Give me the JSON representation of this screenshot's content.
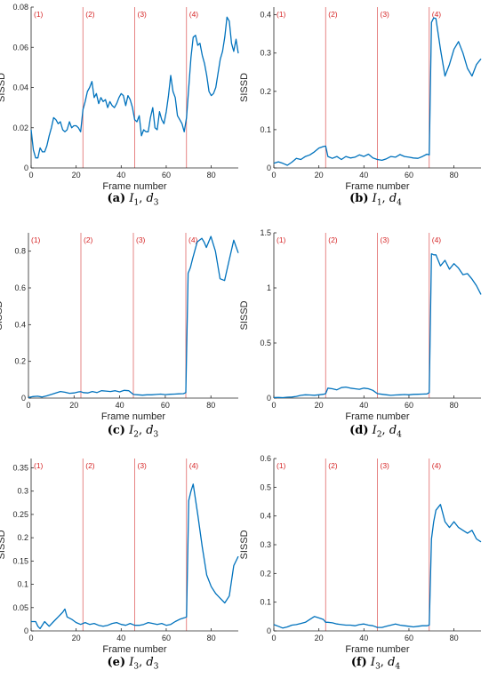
{
  "colors": {
    "line": "#0072BD",
    "phase": "#e06666",
    "phase_text": "#d62728",
    "axis": "#262626"
  },
  "chart_data": [
    {
      "type": "line",
      "caption_tag": "(a)",
      "caption_I": "I",
      "caption_I_sub": "1",
      "caption_d": "d",
      "caption_d_sub": "3",
      "xlabel": "Frame number",
      "ylabel": "SISSD",
      "xlim": [
        0,
        92
      ],
      "ylim": [
        0,
        0.08
      ],
      "xticks": [
        0,
        20,
        40,
        60,
        80
      ],
      "yticks": [
        0,
        0.02,
        0.04,
        0.06,
        0.08
      ],
      "ytick_labels": [
        "0",
        "0.02",
        "0.04",
        "0.06",
        "0.08"
      ],
      "phases": [
        {
          "x": 0,
          "label": "(1)"
        },
        {
          "x": 23,
          "label": "(2)"
        },
        {
          "x": 46,
          "label": "(3)"
        },
        {
          "x": 69,
          "label": "(4)"
        }
      ],
      "x": [
        0,
        1,
        2,
        3,
        4,
        5,
        6,
        7,
        8,
        9,
        10,
        11,
        12,
        13,
        14,
        15,
        16,
        17,
        18,
        19,
        20,
        21,
        22,
        23,
        24,
        25,
        26,
        27,
        28,
        29,
        30,
        31,
        32,
        33,
        34,
        35,
        36,
        37,
        38,
        39,
        40,
        41,
        42,
        43,
        44,
        45,
        46,
        47,
        48,
        49,
        50,
        51,
        52,
        53,
        54,
        55,
        56,
        57,
        58,
        59,
        60,
        61,
        62,
        63,
        64,
        65,
        66,
        67,
        68,
        69,
        70,
        71,
        72,
        73,
        74,
        75,
        76,
        77,
        78,
        79,
        80,
        81,
        82,
        83,
        84,
        85,
        86,
        87,
        88,
        89,
        90,
        91,
        92
      ],
      "y": [
        0.019,
        0.009,
        0.005,
        0.005,
        0.01,
        0.008,
        0.008,
        0.011,
        0.016,
        0.02,
        0.025,
        0.024,
        0.022,
        0.023,
        0.019,
        0.018,
        0.019,
        0.023,
        0.02,
        0.021,
        0.021,
        0.02,
        0.018,
        0.029,
        0.033,
        0.038,
        0.04,
        0.043,
        0.035,
        0.037,
        0.032,
        0.035,
        0.033,
        0.034,
        0.03,
        0.033,
        0.031,
        0.03,
        0.032,
        0.035,
        0.037,
        0.036,
        0.031,
        0.036,
        0.034,
        0.03,
        0.024,
        0.023,
        0.026,
        0.016,
        0.019,
        0.018,
        0.018,
        0.025,
        0.03,
        0.02,
        0.019,
        0.028,
        0.024,
        0.022,
        0.028,
        0.036,
        0.046,
        0.038,
        0.035,
        0.026,
        0.024,
        0.022,
        0.018,
        0.025,
        0.04,
        0.055,
        0.065,
        0.066,
        0.061,
        0.062,
        0.056,
        0.052,
        0.046,
        0.038,
        0.036,
        0.037,
        0.04,
        0.047,
        0.054,
        0.058,
        0.065,
        0.075,
        0.073,
        0.062,
        0.058,
        0.064,
        0.057
      ]
    },
    {
      "type": "line",
      "caption_tag": "(b)",
      "caption_I": "I",
      "caption_I_sub": "1",
      "caption_d": "d",
      "caption_d_sub": "4",
      "xlabel": "Frame number",
      "ylabel": "SISSD",
      "xlim": [
        0,
        92
      ],
      "ylim": [
        0,
        0.42
      ],
      "xticks": [
        0,
        20,
        40,
        60,
        80
      ],
      "yticks": [
        0,
        0.1,
        0.2,
        0.3,
        0.4
      ],
      "ytick_labels": [
        "0",
        "0.1",
        "0.2",
        "0.3",
        "0.4"
      ],
      "phases": [
        {
          "x": 0,
          "label": "(1)"
        },
        {
          "x": 23,
          "label": "(2)"
        },
        {
          "x": 46,
          "label": "(3)"
        },
        {
          "x": 69,
          "label": "(4)"
        }
      ],
      "x": [
        0,
        2,
        4,
        6,
        8,
        10,
        12,
        14,
        16,
        18,
        20,
        22,
        23,
        24,
        26,
        28,
        30,
        32,
        34,
        36,
        38,
        40,
        42,
        44,
        46,
        48,
        50,
        52,
        54,
        56,
        58,
        60,
        62,
        64,
        66,
        68,
        69,
        70,
        71,
        72,
        74,
        76,
        78,
        80,
        82,
        84,
        86,
        88,
        90,
        92
      ],
      "y": [
        0.012,
        0.016,
        0.012,
        0.007,
        0.015,
        0.025,
        0.022,
        0.03,
        0.034,
        0.042,
        0.052,
        0.056,
        0.057,
        0.03,
        0.025,
        0.03,
        0.022,
        0.03,
        0.026,
        0.028,
        0.034,
        0.03,
        0.036,
        0.026,
        0.022,
        0.02,
        0.024,
        0.03,
        0.028,
        0.035,
        0.03,
        0.028,
        0.026,
        0.025,
        0.03,
        0.036,
        0.034,
        0.38,
        0.392,
        0.39,
        0.31,
        0.24,
        0.27,
        0.31,
        0.33,
        0.3,
        0.26,
        0.24,
        0.27,
        0.285
      ]
    },
    {
      "type": "line",
      "caption_tag": "(c)",
      "caption_I": "I",
      "caption_I_sub": "2",
      "caption_d": "d",
      "caption_d_sub": "3",
      "xlabel": "Frame number",
      "ylabel": "SISSD",
      "xlim": [
        0,
        92
      ],
      "ylim": [
        0,
        0.9
      ],
      "xticks": [
        0,
        20,
        40,
        60,
        80
      ],
      "yticks": [
        0,
        0.2,
        0.4,
        0.6,
        0.8
      ],
      "ytick_labels": [
        "0",
        "0.2",
        "0.4",
        "0.6",
        "0.8"
      ],
      "phases": [
        {
          "x": 0,
          "label": "(1)"
        },
        {
          "x": 23,
          "label": "(2)"
        },
        {
          "x": 46,
          "label": "(3)"
        },
        {
          "x": 69,
          "label": "(4)"
        }
      ],
      "x": [
        0,
        2,
        4,
        6,
        8,
        10,
        12,
        14,
        16,
        18,
        20,
        22,
        23,
        24,
        26,
        28,
        30,
        32,
        34,
        36,
        38,
        40,
        42,
        44,
        46,
        48,
        50,
        52,
        54,
        56,
        58,
        60,
        62,
        64,
        66,
        68,
        69,
        70,
        71,
        72,
        74,
        76,
        77,
        78,
        80,
        82,
        84,
        86,
        88,
        90,
        92
      ],
      "y": [
        0.003,
        0.008,
        0.01,
        0.006,
        0.012,
        0.02,
        0.028,
        0.036,
        0.032,
        0.026,
        0.028,
        0.034,
        0.035,
        0.03,
        0.028,
        0.036,
        0.03,
        0.04,
        0.038,
        0.036,
        0.04,
        0.034,
        0.042,
        0.04,
        0.02,
        0.018,
        0.016,
        0.018,
        0.018,
        0.02,
        0.022,
        0.019,
        0.021,
        0.022,
        0.023,
        0.024,
        0.03,
        0.68,
        0.71,
        0.76,
        0.85,
        0.87,
        0.85,
        0.82,
        0.88,
        0.8,
        0.65,
        0.64,
        0.75,
        0.86,
        0.79
      ]
    },
    {
      "type": "line",
      "caption_tag": "(d)",
      "caption_I": "I",
      "caption_I_sub": "2",
      "caption_d": "d",
      "caption_d_sub": "4",
      "xlabel": "Frame number",
      "ylabel": "SISSD",
      "xlim": [
        0,
        92
      ],
      "ylim": [
        0,
        1.5
      ],
      "xticks": [
        0,
        20,
        40,
        60,
        80
      ],
      "yticks": [
        0,
        0.5,
        1,
        1.5
      ],
      "ytick_labels": [
        "0",
        "0.5",
        "1",
        "1.5"
      ],
      "phases": [
        {
          "x": 0,
          "label": "(1)"
        },
        {
          "x": 23,
          "label": "(2)"
        },
        {
          "x": 46,
          "label": "(3)"
        },
        {
          "x": 69,
          "label": "(4)"
        }
      ],
      "x": [
        0,
        2,
        4,
        6,
        8,
        10,
        12,
        14,
        16,
        18,
        20,
        22,
        23,
        24,
        26,
        28,
        30,
        32,
        34,
        36,
        38,
        40,
        42,
        44,
        46,
        48,
        50,
        52,
        54,
        56,
        58,
        60,
        62,
        64,
        66,
        68,
        69,
        70,
        71,
        72,
        74,
        76,
        78,
        80,
        82,
        84,
        86,
        88,
        90,
        92
      ],
      "y": [
        0.005,
        0.006,
        0.004,
        0.008,
        0.01,
        0.015,
        0.025,
        0.03,
        0.028,
        0.026,
        0.03,
        0.035,
        0.04,
        0.09,
        0.085,
        0.075,
        0.095,
        0.1,
        0.09,
        0.085,
        0.08,
        0.09,
        0.085,
        0.07,
        0.04,
        0.035,
        0.03,
        0.025,
        0.028,
        0.03,
        0.032,
        0.03,
        0.034,
        0.035,
        0.036,
        0.038,
        0.05,
        1.31,
        1.3,
        1.3,
        1.2,
        1.25,
        1.17,
        1.22,
        1.18,
        1.12,
        1.13,
        1.08,
        1.02,
        0.94
      ]
    },
    {
      "type": "line",
      "caption_tag": "(e)",
      "caption_I": "I",
      "caption_I_sub": "3",
      "caption_d": "d",
      "caption_d_sub": "3",
      "xlabel": "Frame number",
      "ylabel": "SISSD",
      "xlim": [
        0,
        92
      ],
      "ylim": [
        0,
        0.37
      ],
      "xticks": [
        0,
        20,
        40,
        60,
        80
      ],
      "yticks": [
        0,
        0.05,
        0.1,
        0.15,
        0.2,
        0.25,
        0.3,
        0.35
      ],
      "ytick_labels": [
        "0",
        "0.05",
        "0.1",
        "0.15",
        "0.2",
        "0.25",
        "0.3",
        "0.35"
      ],
      "phases": [
        {
          "x": 0,
          "label": "(1)"
        },
        {
          "x": 23,
          "label": "(2)"
        },
        {
          "x": 46,
          "label": "(3)"
        },
        {
          "x": 69,
          "label": "(4)"
        }
      ],
      "x": [
        0,
        2,
        3,
        4,
        6,
        8,
        10,
        12,
        14,
        15,
        16,
        18,
        20,
        22,
        24,
        26,
        28,
        30,
        32,
        34,
        36,
        38,
        40,
        42,
        44,
        46,
        48,
        50,
        52,
        54,
        56,
        58,
        60,
        62,
        64,
        66,
        68,
        69,
        70,
        71,
        72,
        74,
        76,
        78,
        80,
        82,
        84,
        86,
        88,
        90,
        92
      ],
      "y": [
        0.02,
        0.02,
        0.01,
        0.005,
        0.02,
        0.01,
        0.02,
        0.03,
        0.04,
        0.047,
        0.03,
        0.025,
        0.018,
        0.014,
        0.018,
        0.014,
        0.016,
        0.012,
        0.01,
        0.012,
        0.016,
        0.018,
        0.014,
        0.012,
        0.016,
        0.012,
        0.012,
        0.014,
        0.018,
        0.016,
        0.014,
        0.016,
        0.012,
        0.014,
        0.02,
        0.025,
        0.028,
        0.03,
        0.28,
        0.3,
        0.315,
        0.25,
        0.18,
        0.12,
        0.095,
        0.08,
        0.07,
        0.06,
        0.075,
        0.14,
        0.16
      ]
    },
    {
      "type": "line",
      "caption_tag": "(f)",
      "caption_I": "I",
      "caption_I_sub": "3",
      "caption_d": "d",
      "caption_d_sub": "4",
      "xlabel": "Frame number",
      "ylabel": "SISSD",
      "xlim": [
        0,
        92
      ],
      "ylim": [
        0,
        0.6
      ],
      "xticks": [
        0,
        20,
        40,
        60,
        80
      ],
      "yticks": [
        0,
        0.1,
        0.2,
        0.3,
        0.4,
        0.5,
        0.6
      ],
      "ytick_labels": [
        "0",
        "0.1",
        "0.2",
        "0.3",
        "0.4",
        "0.5",
        "0.6"
      ],
      "phases": [
        {
          "x": 0,
          "label": "(1)"
        },
        {
          "x": 23,
          "label": "(2)"
        },
        {
          "x": 46,
          "label": "(3)"
        },
        {
          "x": 69,
          "label": "(4)"
        }
      ],
      "x": [
        0,
        2,
        4,
        6,
        8,
        10,
        12,
        14,
        16,
        18,
        20,
        22,
        23,
        24,
        26,
        28,
        30,
        32,
        34,
        36,
        38,
        40,
        42,
        44,
        46,
        48,
        50,
        52,
        54,
        56,
        58,
        60,
        62,
        64,
        66,
        68,
        69,
        70,
        71,
        72,
        74,
        76,
        78,
        80,
        82,
        84,
        86,
        88,
        90,
        92
      ],
      "y": [
        0.022,
        0.016,
        0.01,
        0.014,
        0.02,
        0.022,
        0.026,
        0.03,
        0.04,
        0.05,
        0.045,
        0.04,
        0.03,
        0.03,
        0.028,
        0.024,
        0.022,
        0.02,
        0.02,
        0.018,
        0.022,
        0.024,
        0.02,
        0.018,
        0.012,
        0.012,
        0.016,
        0.02,
        0.024,
        0.02,
        0.018,
        0.016,
        0.014,
        0.016,
        0.018,
        0.018,
        0.02,
        0.32,
        0.38,
        0.42,
        0.44,
        0.38,
        0.36,
        0.38,
        0.36,
        0.35,
        0.34,
        0.35,
        0.32,
        0.31
      ]
    }
  ]
}
